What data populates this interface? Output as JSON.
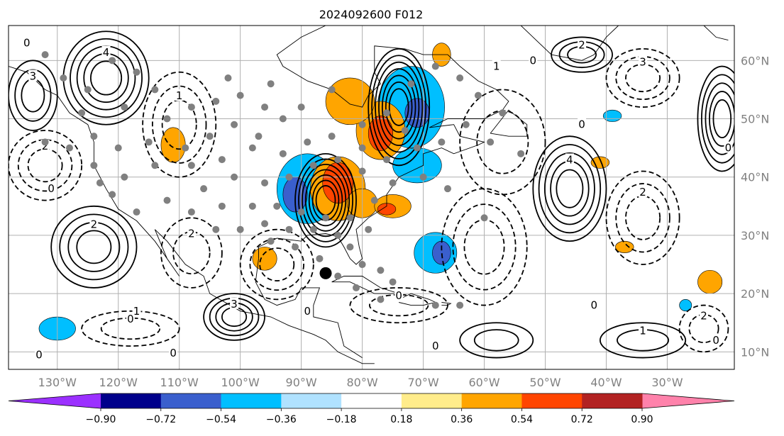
{
  "chart_data": {
    "type": "map",
    "title": "2024092600 F012",
    "map": {
      "lon_range": [
        -138,
        -19
      ],
      "lat_range": [
        7,
        66
      ],
      "lon_ticks": [
        {
          "lon": -130,
          "label": "130°W"
        },
        {
          "lon": -120,
          "label": "120°W"
        },
        {
          "lon": -110,
          "label": "110°W"
        },
        {
          "lon": -100,
          "label": "100°W"
        },
        {
          "lon": -90,
          "label": "90°W"
        },
        {
          "lon": -80,
          "label": "80°W"
        },
        {
          "lon": -70,
          "label": "70°W"
        },
        {
          "lon": -60,
          "label": "60°W"
        },
        {
          "lon": -50,
          "label": "50°W"
        },
        {
          "lon": -40,
          "label": "40°W"
        },
        {
          "lon": -30,
          "label": "30°W"
        }
      ],
      "lat_ticks": [
        {
          "lat": 10,
          "label": "10°N"
        },
        {
          "lat": 20,
          "label": "20°N"
        },
        {
          "lat": 30,
          "label": "30°N"
        },
        {
          "lat": 40,
          "label": "40°N"
        },
        {
          "lat": 50,
          "label": "50°N"
        },
        {
          "lat": 60,
          "label": "60°N"
        }
      ],
      "grid": true
    },
    "colorbar": {
      "boundaries": [
        -0.9,
        -0.72,
        -0.54,
        -0.36,
        -0.18,
        0.18,
        0.36,
        0.54,
        0.72,
        0.9
      ],
      "tick_labels": [
        "−0.90",
        "−0.72",
        "−0.54",
        "−0.36",
        "−0.18",
        "0.18",
        "0.36",
        "0.54",
        "0.72",
        "0.90"
      ],
      "colors": [
        "#9b30ff",
        "#00008b",
        "#3a5fcd",
        "#00bfff",
        "#b0e2ff",
        "#ffffff",
        "#ffec8b",
        "#ffa500",
        "#ff4500",
        "#b22222",
        "#ff82ab"
      ],
      "extend": "both"
    },
    "shaded_features": [
      {
        "lon": -89,
        "lat": 38,
        "rx": 5,
        "ry": 6,
        "value": -0.45
      },
      {
        "lon": -91,
        "lat": 37,
        "rx": 2,
        "ry": 3,
        "value": -0.62
      },
      {
        "lon": -84,
        "lat": 38,
        "rx": 4.5,
        "ry": 5.5,
        "value": 0.45
      },
      {
        "lon": -84,
        "lat": 39,
        "rx": 2.5,
        "ry": 3.5,
        "value": 0.63
      },
      {
        "lon": -80,
        "lat": 35.5,
        "rx": 2.5,
        "ry": 2.5,
        "value": 0.45
      },
      {
        "lon": -75,
        "lat": 35,
        "rx": 3,
        "ry": 2,
        "value": 0.45
      },
      {
        "lon": -76,
        "lat": 34.5,
        "rx": 1.5,
        "ry": 1,
        "value": 0.63
      },
      {
        "lon": -72,
        "lat": 52,
        "rx": 5.5,
        "ry": 7,
        "value": -0.45
      },
      {
        "lon": -71,
        "lat": 51,
        "rx": 2,
        "ry": 2.5,
        "value": -0.62
      },
      {
        "lon": -77,
        "lat": 48,
        "rx": 4,
        "ry": 5,
        "value": 0.45
      },
      {
        "lon": -77,
        "lat": 47.5,
        "rx": 2,
        "ry": 3,
        "value": 0.63
      },
      {
        "lon": -82,
        "lat": 53,
        "rx": 4,
        "ry": 4,
        "value": 0.45
      },
      {
        "lon": -71,
        "lat": 42,
        "rx": 4,
        "ry": 3,
        "value": -0.45
      },
      {
        "lon": -68,
        "lat": 27,
        "rx": 3.5,
        "ry": 3.5,
        "value": -0.45
      },
      {
        "lon": -67,
        "lat": 27,
        "rx": 1.5,
        "ry": 2,
        "value": -0.62
      },
      {
        "lon": -111,
        "lat": 45.5,
        "rx": 2,
        "ry": 3,
        "value": 0.45
      },
      {
        "lon": -96,
        "lat": 26,
        "rx": 2,
        "ry": 2,
        "value": 0.45
      },
      {
        "lon": -130,
        "lat": 14,
        "rx": 3,
        "ry": 2,
        "value": -0.45
      },
      {
        "lon": -67,
        "lat": 61,
        "rx": 1.5,
        "ry": 2,
        "value": 0.45
      },
      {
        "lon": -23,
        "lat": 22,
        "rx": 2,
        "ry": 2,
        "value": 0.45
      },
      {
        "lon": -27,
        "lat": 18,
        "rx": 1,
        "ry": 1,
        "value": -0.45
      },
      {
        "lon": -39,
        "lat": 50.5,
        "rx": 1.5,
        "ry": 1,
        "value": -0.45
      },
      {
        "lon": -41,
        "lat": 42.5,
        "rx": 1.5,
        "ry": 1,
        "value": 0.45
      },
      {
        "lon": -37,
        "lat": 28,
        "rx": 1.5,
        "ry": 1,
        "value": 0.45
      }
    ],
    "contours": [
      {
        "lon": -122,
        "lat": 57,
        "rx": 7,
        "ry": 8,
        "sign": 1,
        "rings": 5,
        "label": "4"
      },
      {
        "lon": -86,
        "lat": 36,
        "rx": 5,
        "ry": 8,
        "sign": 1,
        "rings": 7,
        "label": ""
      },
      {
        "lon": -74,
        "lat": 52,
        "rx": 5,
        "ry": 10,
        "sign": 1,
        "rings": 7,
        "label": ""
      },
      {
        "lon": -46,
        "lat": 38,
        "rx": 6,
        "ry": 9,
        "sign": 1,
        "rings": 5,
        "label": "4"
      },
      {
        "lon": -124,
        "lat": 28,
        "rx": 7,
        "ry": 7,
        "sign": 1,
        "rings": 4,
        "label": "2"
      },
      {
        "lon": -101,
        "lat": 16,
        "rx": 5,
        "ry": 4,
        "sign": 1,
        "rings": 4,
        "label": "3"
      },
      {
        "lon": -21,
        "lat": 50,
        "rx": 4,
        "ry": 9,
        "sign": 1,
        "rings": 5,
        "label": ""
      },
      {
        "lon": -44,
        "lat": 61,
        "rx": 5,
        "ry": 3,
        "sign": 1,
        "rings": 3,
        "label": "2"
      },
      {
        "lon": -134,
        "lat": 54,
        "rx": 4,
        "ry": 6,
        "sign": 1,
        "rings": 3,
        "label": "3"
      },
      {
        "lon": -58,
        "lat": 12,
        "rx": 6,
        "ry": 3,
        "sign": 1,
        "rings": 2,
        "label": ""
      },
      {
        "lon": -34,
        "lat": 12,
        "rx": 7,
        "ry": 3,
        "sign": 1,
        "rings": 2,
        "label": "1"
      },
      {
        "lon": -110,
        "lat": 49,
        "rx": 6,
        "ry": 9,
        "sign": -1,
        "rings": 3,
        "label": "1"
      },
      {
        "lon": -94,
        "lat": 25,
        "rx": 6,
        "ry": 6,
        "sign": -1,
        "rings": 3,
        "label": ""
      },
      {
        "lon": -132,
        "lat": 42,
        "rx": 6,
        "ry": 6,
        "sign": -1,
        "rings": 3,
        "label": "2"
      },
      {
        "lon": -108,
        "lat": 27,
        "rx": 5,
        "ry": 6,
        "sign": -1,
        "rings": 2,
        "label": "2"
      },
      {
        "lon": -60,
        "lat": 28,
        "rx": 7,
        "ry": 10,
        "sign": -1,
        "rings": 3,
        "label": ""
      },
      {
        "lon": -34,
        "lat": 33,
        "rx": 6,
        "ry": 8,
        "sign": -1,
        "rings": 3,
        "label": "2"
      },
      {
        "lon": -57,
        "lat": 46,
        "rx": 7,
        "ry": 9,
        "sign": -1,
        "rings": 2,
        "label": ""
      },
      {
        "lon": -34,
        "lat": 57,
        "rx": 6,
        "ry": 5,
        "sign": -1,
        "rings": 3,
        "label": "3"
      },
      {
        "lon": -118,
        "lat": 14,
        "rx": 8,
        "ry": 3,
        "sign": -1,
        "rings": 2,
        "label": "0"
      },
      {
        "lon": -74,
        "lat": 18,
        "rx": 8,
        "ry": 3,
        "sign": -1,
        "rings": 2,
        "label": "0"
      },
      {
        "lon": -24,
        "lat": 14,
        "rx": 4,
        "ry": 4,
        "sign": -1,
        "rings": 2,
        "label": "2"
      }
    ],
    "contour_labels": [
      {
        "lon": -135,
        "lat": 63,
        "text": "0"
      },
      {
        "lon": -131,
        "lat": 38,
        "text": "0"
      },
      {
        "lon": -111,
        "lat": 9.8,
        "text": "0"
      },
      {
        "lon": -89,
        "lat": 17,
        "text": "0"
      },
      {
        "lon": -68,
        "lat": 11,
        "text": "0"
      },
      {
        "lon": -52,
        "lat": 60,
        "text": "0"
      },
      {
        "lon": -44,
        "lat": 49,
        "text": "0"
      },
      {
        "lon": -22,
        "lat": 12,
        "text": "0"
      },
      {
        "lon": -42,
        "lat": 18,
        "text": "0"
      },
      {
        "lon": -133,
        "lat": 9.5,
        "text": "0"
      },
      {
        "lon": -20,
        "lat": 45,
        "text": "0"
      },
      {
        "lon": -117,
        "lat": 17,
        "text": "1"
      },
      {
        "lon": -58,
        "lat": 59,
        "text": "1"
      }
    ],
    "stations": [
      [
        -132,
        61
      ],
      [
        -129,
        57
      ],
      [
        -125,
        55
      ],
      [
        -121,
        60
      ],
      [
        -117,
        58
      ],
      [
        -114,
        55
      ],
      [
        -126,
        51
      ],
      [
        -119,
        52
      ],
      [
        -112,
        50
      ],
      [
        -108,
        52
      ],
      [
        -104,
        53
      ],
      [
        -100,
        54
      ],
      [
        -96,
        52
      ],
      [
        -93,
        50
      ],
      [
        -101,
        49
      ],
      [
        -97,
        47
      ],
      [
        -105,
        47
      ],
      [
        -109,
        45
      ],
      [
        -115,
        46
      ],
      [
        -120,
        45
      ],
      [
        -124,
        47
      ],
      [
        -128,
        45
      ],
      [
        -132,
        46
      ],
      [
        -124,
        42
      ],
      [
        -119,
        40
      ],
      [
        -114,
        42
      ],
      [
        -108,
        42
      ],
      [
        -103,
        43
      ],
      [
        -98,
        45
      ],
      [
        -93,
        44
      ],
      [
        -89,
        46
      ],
      [
        -85,
        47
      ],
      [
        -80,
        49
      ],
      [
        -76,
        51
      ],
      [
        -72,
        56
      ],
      [
        -68,
        59
      ],
      [
        -64,
        57
      ],
      [
        -61,
        54
      ],
      [
        -57,
        51
      ],
      [
        -63,
        49
      ],
      [
        -59,
        46
      ],
      [
        -54,
        44
      ],
      [
        -67,
        46
      ],
      [
        -71,
        45
      ],
      [
        -76,
        43
      ],
      [
        -80,
        41
      ],
      [
        -84,
        43
      ],
      [
        -88,
        42
      ],
      [
        -92,
        40
      ],
      [
        -96,
        39
      ],
      [
        -101,
        40
      ],
      [
        -106,
        38
      ],
      [
        -112,
        36
      ],
      [
        -117,
        34
      ],
      [
        -121,
        37
      ],
      [
        -123,
        39
      ],
      [
        -108,
        34
      ],
      [
        -103,
        35
      ],
      [
        -98,
        35
      ],
      [
        -94,
        35
      ],
      [
        -90,
        34
      ],
      [
        -86,
        33
      ],
      [
        -82,
        33
      ],
      [
        -78,
        36
      ],
      [
        -75,
        39
      ],
      [
        -79,
        31
      ],
      [
        -82,
        28
      ],
      [
        -84,
        30
      ],
      [
        -88,
        31
      ],
      [
        -92,
        31
      ],
      [
        -96,
        32
      ],
      [
        -100,
        31
      ],
      [
        -104,
        31
      ],
      [
        -95,
        29
      ],
      [
        -91,
        28
      ],
      [
        -87,
        26
      ],
      [
        -80,
        25
      ],
      [
        -77,
        24
      ],
      [
        -81,
        21
      ],
      [
        -77,
        19
      ],
      [
        -68,
        18
      ],
      [
        -64,
        18
      ],
      [
        -75,
        22
      ],
      [
        -84,
        23
      ],
      [
        -60,
        33
      ],
      [
        -66,
        38
      ],
      [
        -70,
        40
      ],
      [
        -90,
        52
      ],
      [
        -85,
        55
      ],
      [
        -95,
        56
      ],
      [
        -102,
        57
      ],
      [
        -80,
        45
      ],
      [
        -73,
        48
      ]
    ],
    "marker": {
      "lon": -86,
      "lat": 23.5
    }
  }
}
